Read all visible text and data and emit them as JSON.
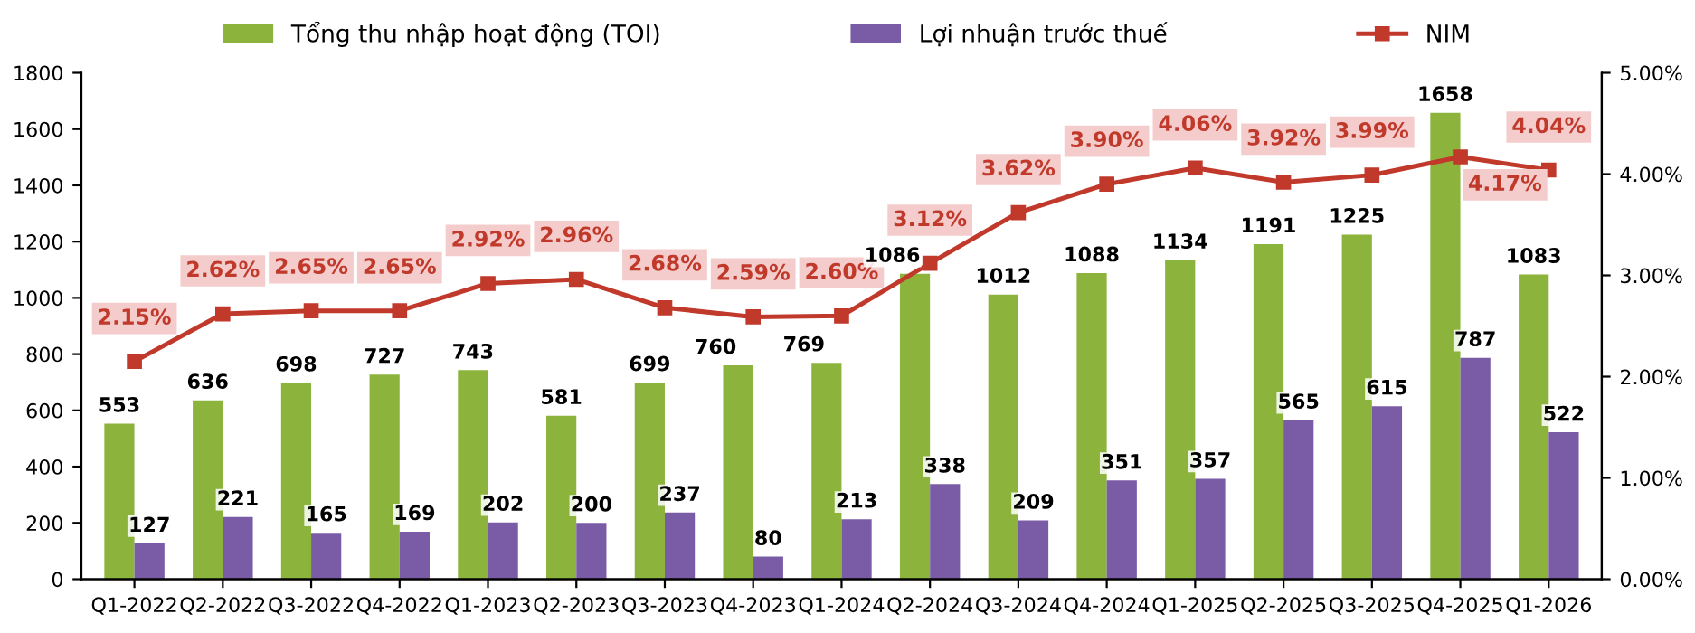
{
  "chart_data": {
    "type": "bar",
    "categories": [
      "Q1-2022",
      "Q2-2022",
      "Q3-2022",
      "Q4-2022",
      "Q1-2023",
      "Q2-2023",
      "Q3-2023",
      "Q4-2023",
      "Q1-2024",
      "Q2-2024",
      "Q3-2024",
      "Q4-2024",
      "Q1-2025",
      "Q2-2025",
      "Q3-2025",
      "Q4-2025",
      "Q1-2026"
    ],
    "series": [
      {
        "name": "Tổng thu nhập hoạt động (TOI)",
        "color": "#8cb43c",
        "values": [
          553,
          636,
          698,
          727,
          743,
          581,
          699,
          760,
          769,
          1086,
          1012,
          1088,
          1134,
          1191,
          1225,
          1658,
          1083
        ]
      },
      {
        "name": "Lợi nhuận trước thuế",
        "color": "#7a5ca6",
        "values": [
          127,
          221,
          165,
          169,
          202,
          200,
          237,
          80,
          213,
          338,
          209,
          351,
          357,
          565,
          615,
          787,
          522
        ]
      },
      {
        "name": "NIM",
        "type": "line",
        "axis": "y2",
        "color": "#c0392b",
        "marker": "square",
        "line_style": "solid",
        "values": [
          2.15,
          2.62,
          2.65,
          2.65,
          2.92,
          2.96,
          2.68,
          2.59,
          2.6,
          3.12,
          3.62,
          3.9,
          4.06,
          3.92,
          3.99,
          4.17,
          4.04
        ],
        "value_labels": [
          "2.15%",
          "2.62%",
          "2.65%",
          "2.65%",
          "2.92%",
          "2.96%",
          "2.68%",
          "2.59%",
          "2.60%",
          "3.12%",
          "3.62%",
          "3.90%",
          "4.06%",
          "3.92%",
          "3.99%",
          "4.17%",
          "4.04%"
        ]
      }
    ],
    "ylim": [
      0,
      1800
    ],
    "yticks": [
      0,
      200,
      400,
      600,
      800,
      1000,
      1200,
      1400,
      1600,
      1800
    ],
    "y2lim": [
      0,
      5
    ],
    "y2ticks": [
      {
        "value": 0,
        "label": "0.00%"
      },
      {
        "value": 1,
        "label": "1.00%"
      },
      {
        "value": 2,
        "label": "2.00%"
      },
      {
        "value": 3,
        "label": "3.00%"
      },
      {
        "value": 4,
        "label": "4.00%"
      },
      {
        "value": 5,
        "label": "5.00%"
      }
    ],
    "data_labels": true,
    "legend": "top",
    "grid": false
  }
}
